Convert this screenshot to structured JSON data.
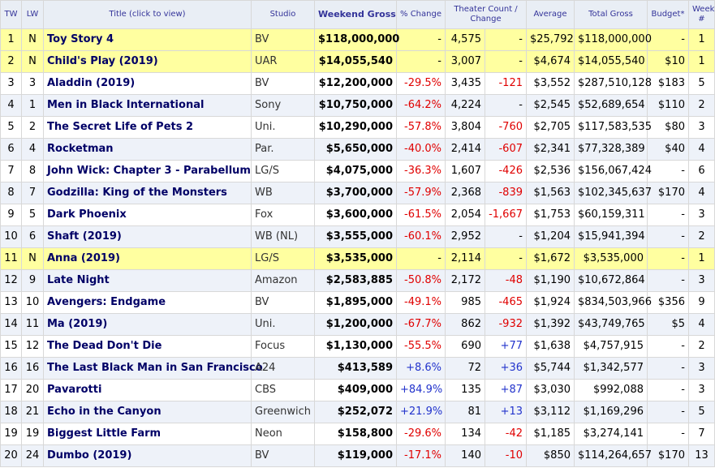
{
  "header": {
    "tw": "TW",
    "lw": "LW",
    "title": "Title (click to view)",
    "studio": "Studio",
    "weekend_gross": "Weekend Gross",
    "pct_change": "% Change",
    "theater_count": "Theater Count /",
    "theater_change": "Change",
    "average": "Average",
    "total_gross": "Total Gross",
    "budget": "Budget*",
    "week": "Week",
    "week_num": "#"
  },
  "rows": [
    {
      "tw": "1",
      "lw": "N",
      "title": "Toy Story 4",
      "studio": "BV",
      "gross": "$118,000,000",
      "pct": "-",
      "theaters": "4,575",
      "tchange": "-",
      "avg": "$25,792",
      "total": "$118,000,000",
      "budget": "-",
      "week": "1",
      "new": true
    },
    {
      "tw": "2",
      "lw": "N",
      "title": "Child's Play (2019)",
      "studio": "UAR",
      "gross": "$14,055,540",
      "pct": "-",
      "theaters": "3,007",
      "tchange": "-",
      "avg": "$4,674",
      "total": "$14,055,540",
      "budget": "$10",
      "week": "1",
      "new": true
    },
    {
      "tw": "3",
      "lw": "3",
      "title": "Aladdin (2019)",
      "studio": "BV",
      "gross": "$12,200,000",
      "pct": "-29.5%",
      "theaters": "3,435",
      "tchange": "-121",
      "avg": "$3,552",
      "total": "$287,510,128",
      "budget": "$183",
      "week": "5"
    },
    {
      "tw": "4",
      "lw": "1",
      "title": "Men in Black International",
      "studio": "Sony",
      "gross": "$10,750,000",
      "pct": "-64.2%",
      "theaters": "4,224",
      "tchange": "-",
      "avg": "$2,545",
      "total": "$52,689,654",
      "budget": "$110",
      "week": "2"
    },
    {
      "tw": "5",
      "lw": "2",
      "title": "The Secret Life of Pets 2",
      "studio": "Uni.",
      "gross": "$10,290,000",
      "pct": "-57.8%",
      "theaters": "3,804",
      "tchange": "-760",
      "avg": "$2,705",
      "total": "$117,583,535",
      "budget": "$80",
      "week": "3"
    },
    {
      "tw": "6",
      "lw": "4",
      "title": "Rocketman",
      "studio": "Par.",
      "gross": "$5,650,000",
      "pct": "-40.0%",
      "theaters": "2,414",
      "tchange": "-607",
      "avg": "$2,341",
      "total": "$77,328,389",
      "budget": "$40",
      "week": "4"
    },
    {
      "tw": "7",
      "lw": "8",
      "title": "John Wick: Chapter 3 - Parabellum",
      "studio": "LG/S",
      "gross": "$4,075,000",
      "pct": "-36.3%",
      "theaters": "1,607",
      "tchange": "-426",
      "avg": "$2,536",
      "total": "$156,067,424",
      "budget": "-",
      "week": "6"
    },
    {
      "tw": "8",
      "lw": "7",
      "title": "Godzilla: King of the Monsters",
      "studio": "WB",
      "gross": "$3,700,000",
      "pct": "-57.9%",
      "theaters": "2,368",
      "tchange": "-839",
      "avg": "$1,563",
      "total": "$102,345,637",
      "budget": "$170",
      "week": "4"
    },
    {
      "tw": "9",
      "lw": "5",
      "title": "Dark Phoenix",
      "studio": "Fox",
      "gross": "$3,600,000",
      "pct": "-61.5%",
      "theaters": "2,054",
      "tchange": "-1,667",
      "avg": "$1,753",
      "total": "$60,159,311",
      "budget": "-",
      "week": "3"
    },
    {
      "tw": "10",
      "lw": "6",
      "title": "Shaft (2019)",
      "studio": "WB (NL)",
      "gross": "$3,555,000",
      "pct": "-60.1%",
      "theaters": "2,952",
      "tchange": "-",
      "avg": "$1,204",
      "total": "$15,941,394",
      "budget": "-",
      "week": "2"
    },
    {
      "tw": "11",
      "lw": "N",
      "title": "Anna (2019)",
      "studio": "LG/S",
      "gross": "$3,535,000",
      "pct": "-",
      "theaters": "2,114",
      "tchange": "-",
      "avg": "$1,672",
      "total": "$3,535,000",
      "budget": "-",
      "week": "1",
      "new": true
    },
    {
      "tw": "12",
      "lw": "9",
      "title": "Late Night",
      "studio": "Amazon",
      "gross": "$2,583,885",
      "pct": "-50.8%",
      "theaters": "2,172",
      "tchange": "-48",
      "avg": "$1,190",
      "total": "$10,672,864",
      "budget": "-",
      "week": "3"
    },
    {
      "tw": "13",
      "lw": "10",
      "title": "Avengers: Endgame",
      "studio": "BV",
      "gross": "$1,895,000",
      "pct": "-49.1%",
      "theaters": "985",
      "tchange": "-465",
      "avg": "$1,924",
      "total": "$834,503,966",
      "budget": "$356",
      "week": "9"
    },
    {
      "tw": "14",
      "lw": "11",
      "title": "Ma (2019)",
      "studio": "Uni.",
      "gross": "$1,200,000",
      "pct": "-67.7%",
      "theaters": "862",
      "tchange": "-932",
      "avg": "$1,392",
      "total": "$43,749,765",
      "budget": "$5",
      "week": "4"
    },
    {
      "tw": "15",
      "lw": "12",
      "title": "The Dead Don't Die",
      "studio": "Focus",
      "gross": "$1,130,000",
      "pct": "-55.5%",
      "theaters": "690",
      "tchange": "+77",
      "avg": "$1,638",
      "total": "$4,757,915",
      "budget": "-",
      "week": "2"
    },
    {
      "tw": "16",
      "lw": "16",
      "title": "The Last Black Man in San Francisco",
      "studio": "A24",
      "gross": "$413,589",
      "pct": "+8.6%",
      "theaters": "72",
      "tchange": "+36",
      "avg": "$5,744",
      "total": "$1,342,577",
      "budget": "-",
      "week": "3"
    },
    {
      "tw": "17",
      "lw": "20",
      "title": "Pavarotti",
      "studio": "CBS",
      "gross": "$409,000",
      "pct": "+84.9%",
      "theaters": "135",
      "tchange": "+87",
      "avg": "$3,030",
      "total": "$992,088",
      "budget": "-",
      "week": "3"
    },
    {
      "tw": "18",
      "lw": "21",
      "title": "Echo in the Canyon",
      "studio": "Greenwich",
      "gross": "$252,072",
      "pct": "+21.9%",
      "theaters": "81",
      "tchange": "+13",
      "avg": "$3,112",
      "total": "$1,169,296",
      "budget": "-",
      "week": "5"
    },
    {
      "tw": "19",
      "lw": "19",
      "title": "Biggest Little Farm",
      "studio": "Neon",
      "gross": "$158,800",
      "pct": "-29.6%",
      "theaters": "134",
      "tchange": "-42",
      "avg": "$1,185",
      "total": "$3,274,141",
      "budget": "-",
      "week": "7"
    },
    {
      "tw": "20",
      "lw": "24",
      "title": "Dumbo (2019)",
      "studio": "BV",
      "gross": "$119,000",
      "pct": "-17.1%",
      "theaters": "140",
      "tchange": "-10",
      "avg": "$850",
      "total": "$114,264,657",
      "budget": "$170",
      "week": "13"
    }
  ]
}
